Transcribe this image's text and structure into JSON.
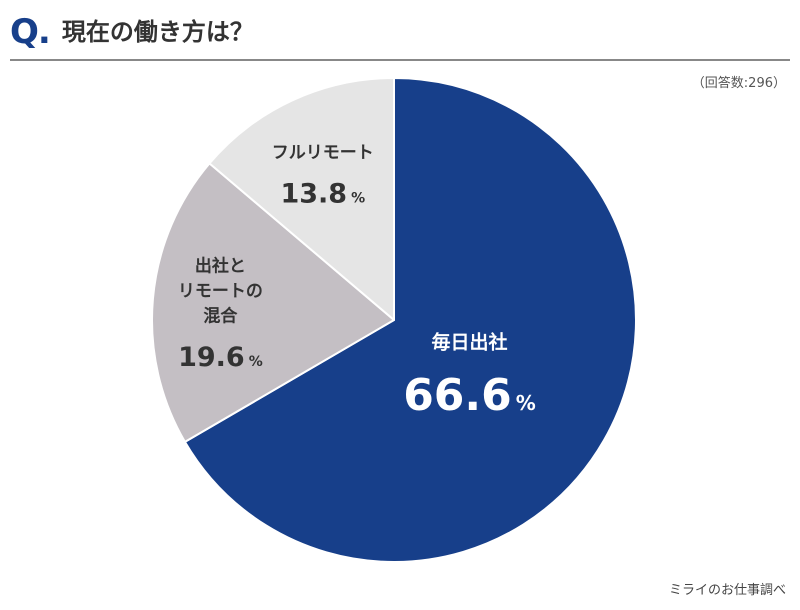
{
  "header": {
    "q_mark": "Q.",
    "title": "現在の働き方は？"
  },
  "respondents": "（回答数:296）",
  "source": "ミライのお仕事調べ",
  "chart_data": {
    "type": "pie",
    "title": "現在の働き方は？",
    "start": "top",
    "direction": "clockwise",
    "slices": [
      {
        "label_lines": [
          "毎日出社"
        ],
        "value": 66.6,
        "value_text": "66.6",
        "unit": "%",
        "color": "#173f8a",
        "text_color": "#ffffff"
      },
      {
        "label_lines": [
          "出社と",
          "リモートの",
          "混合"
        ],
        "value": 19.6,
        "value_text": "19.6",
        "unit": "%",
        "color": "#c4bfc4",
        "text_color": "#333333"
      },
      {
        "label_lines": [
          "フルリモート"
        ],
        "value": 13.8,
        "value_text": "13.8",
        "unit": "%",
        "color": "#e5e5e5",
        "text_color": "#333333"
      }
    ]
  }
}
